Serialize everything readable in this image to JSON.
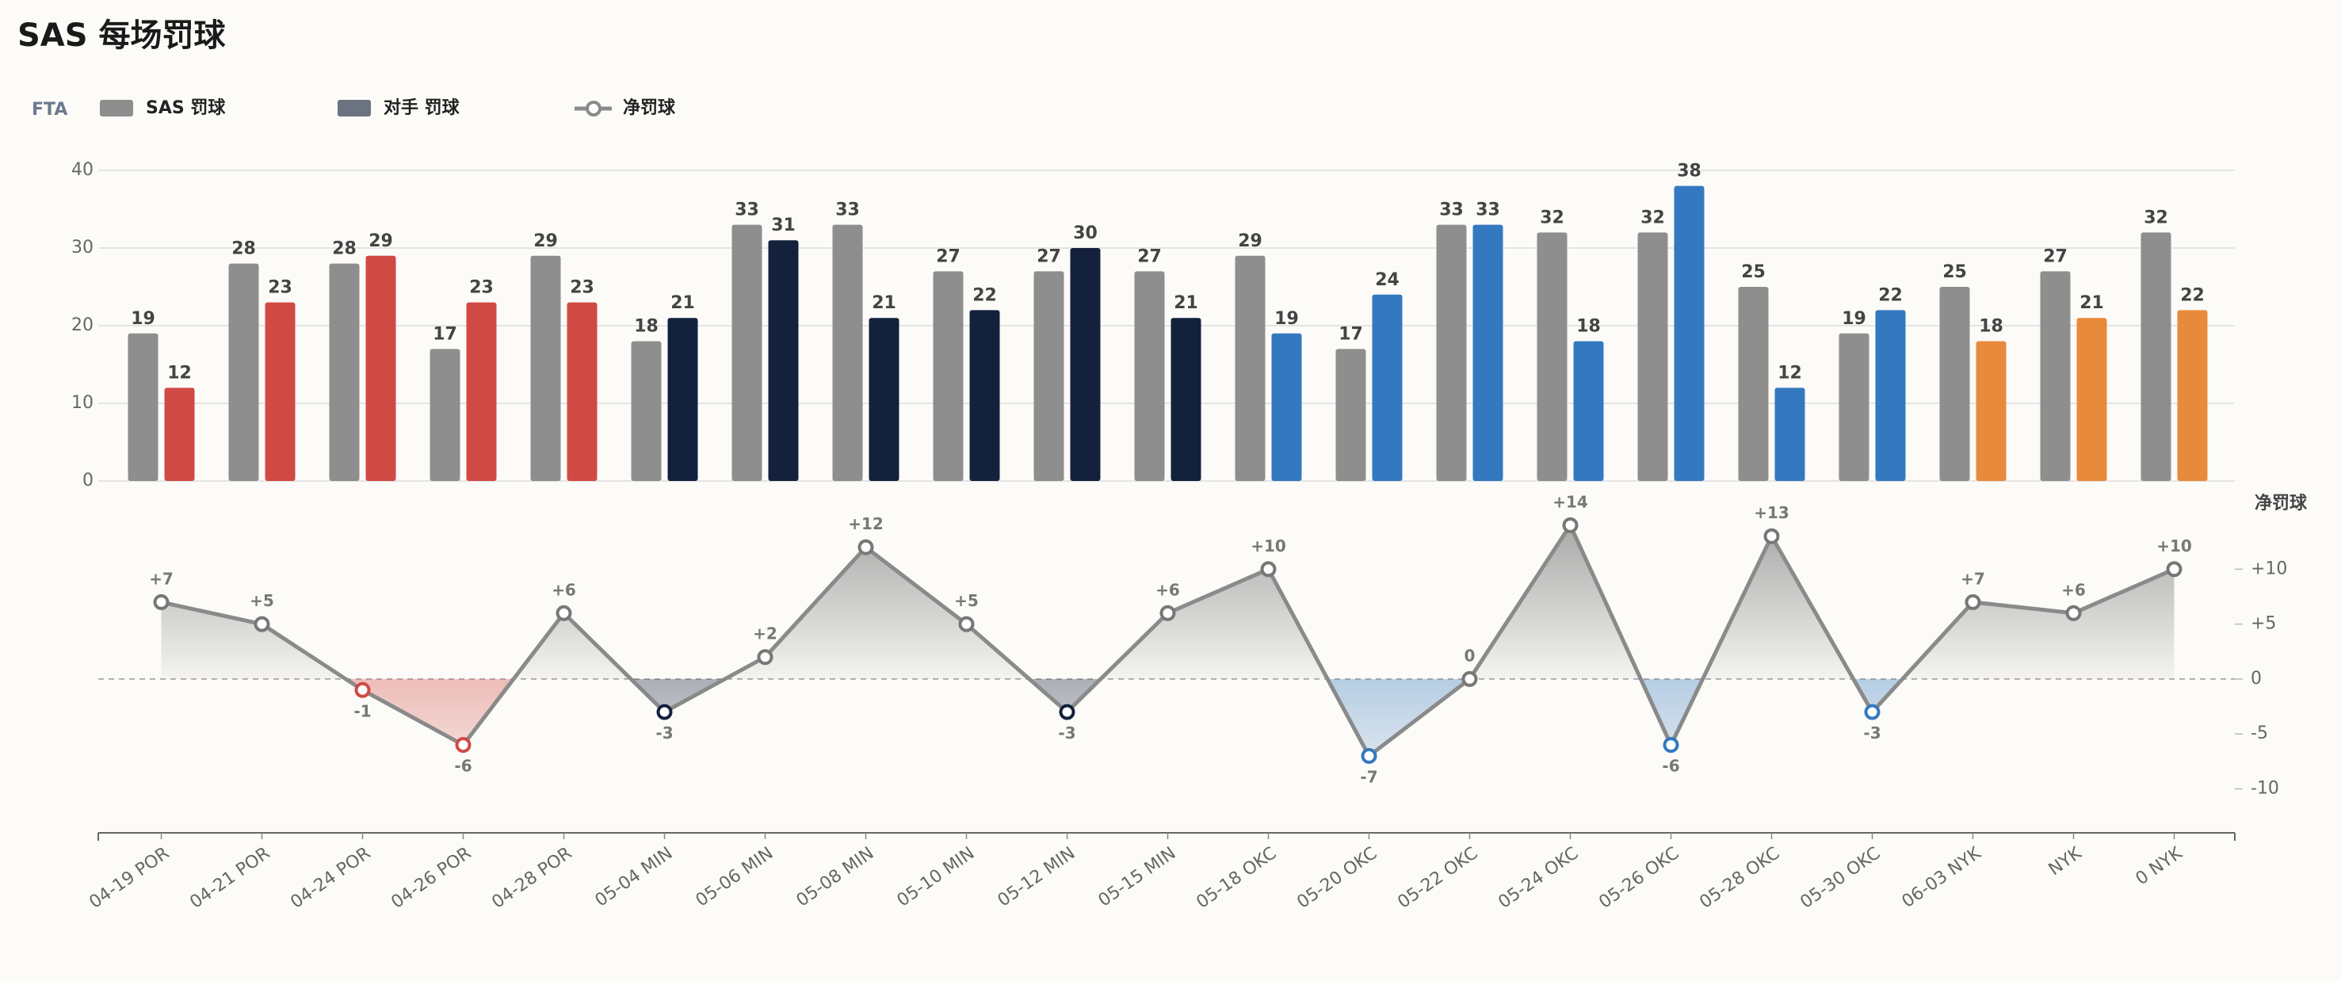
{
  "chart_data": [
    {
      "type": "bar",
      "title": "SAS 每场罚球",
      "ylabel": "FTA",
      "series": [
        {
          "name": "SAS 罚球",
          "color": "#8e8e8e",
          "values": [
            19,
            28,
            28,
            17,
            29,
            18,
            33,
            33,
            27,
            27,
            27,
            29,
            17,
            33,
            32,
            32,
            25,
            19,
            25,
            27,
            32
          ]
        },
        {
          "name": "对手 罚球",
          "color": "#6b7280",
          "colors": [
            "#d04a45",
            "#d04a45",
            "#d04a45",
            "#d04a45",
            "#d04a45",
            "#14213d",
            "#14213d",
            "#14213d",
            "#14213d",
            "#14213d",
            "#14213d",
            "#3478c0",
            "#3478c0",
            "#3478c0",
            "#3478c0",
            "#3478c0",
            "#3478c0",
            "#3478c0",
            "#e88a3c",
            "#e88a3c",
            "#e88a3c"
          ],
          "values": [
            12,
            23,
            29,
            23,
            23,
            21,
            31,
            21,
            22,
            30,
            21,
            19,
            24,
            33,
            18,
            38,
            12,
            22,
            18,
            21,
            22
          ]
        }
      ],
      "ylim": [
        0,
        40
      ],
      "yticks": [
        0,
        10,
        20,
        30,
        40
      ],
      "grid": true
    },
    {
      "type": "line",
      "ylabel": "净罚球",
      "categories": [
        "04-19 POR",
        "04-21 POR",
        "04-24 POR",
        "04-26 POR",
        "04-28 POR",
        "05-04 MIN",
        "05-06 MIN",
        "05-08 MIN",
        "05-10 MIN",
        "05-12 MIN",
        "05-15 MIN",
        "05-18 OKC",
        "05-20 OKC",
        "05-22 OKC",
        "05-24 OKC",
        "05-26 OKC",
        "05-28 OKC",
        "05-30 OKC",
        "06-03 NYK",
        "NYK",
        "0 NYK"
      ],
      "series": [
        {
          "name": "净罚球",
          "color": "#8a8a8a",
          "values": [
            7,
            5,
            -1,
            -6,
            6,
            -3,
            2,
            12,
            5,
            -3,
            6,
            10,
            -7,
            0,
            14,
            -6,
            13,
            -3,
            7,
            6,
            10
          ],
          "value_labels": [
            "+7",
            "+5",
            "-1",
            "-6",
            "+6",
            "-3",
            "+2",
            "+12",
            "+5",
            "-3",
            "+6",
            "+10",
            "-7",
            "0",
            "+14",
            "-6",
            "+13",
            "-3",
            "+7",
            "+6",
            "+10"
          ]
        }
      ],
      "ylim": [
        -14,
        15
      ],
      "yticks": [
        {
          "value": 10,
          "label": "+10"
        },
        {
          "value": 5,
          "label": "+5"
        },
        0,
        -5,
        -10
      ],
      "zero_line": true
    }
  ]
}
